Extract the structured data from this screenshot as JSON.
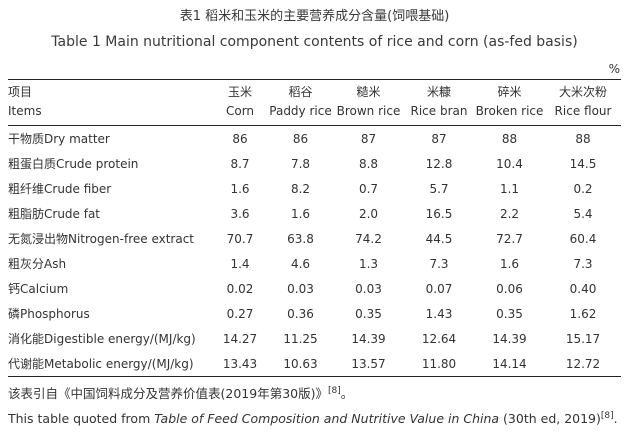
{
  "page": {
    "title_zh": "表1 稻米和玉米的主要营养成分含量(饲喂基础)",
    "title_en": "Table 1 Main nutritional component contents of rice and corn (as-fed basis)",
    "unit_label": "%"
  },
  "table": {
    "header": {
      "items_zh": "项目",
      "items_en": "Items",
      "columns": [
        {
          "zh": "玉米",
          "en": "Corn"
        },
        {
          "zh": "稻谷",
          "en": "Paddy rice"
        },
        {
          "zh": "糙米",
          "en": "Brown rice"
        },
        {
          "zh": "米糠",
          "en": "Rice bran"
        },
        {
          "zh": "碎米",
          "en": "Broken rice"
        },
        {
          "zh": "大米次粉",
          "en": "Rice flour"
        }
      ]
    },
    "rows": [
      {
        "label": "干物质Dry matter",
        "values": [
          "86",
          "86",
          "87",
          "87",
          "88",
          "88"
        ]
      },
      {
        "label": "粗蛋白质Crude protein",
        "values": [
          "8.7",
          "7.8",
          "8.8",
          "12.8",
          "10.4",
          "14.5"
        ]
      },
      {
        "label": "粗纤维Crude fiber",
        "values": [
          "1.6",
          "8.2",
          "0.7",
          "5.7",
          "1.1",
          "0.2"
        ]
      },
      {
        "label": "粗脂肪Crude fat",
        "values": [
          "3.6",
          "1.6",
          "2.0",
          "16.5",
          "2.2",
          "5.4"
        ]
      },
      {
        "label": "无氮浸出物Nitrogen-free extract",
        "values": [
          "70.7",
          "63.8",
          "74.2",
          "44.5",
          "72.7",
          "60.4"
        ]
      },
      {
        "label": "粗灰分Ash",
        "values": [
          "1.4",
          "4.6",
          "1.3",
          "7.3",
          "1.6",
          "7.3"
        ]
      },
      {
        "label": "钙Calcium",
        "values": [
          "0.02",
          "0.03",
          "0.03",
          "0.07",
          "0.06",
          "0.40"
        ]
      },
      {
        "label": "磷Phosphorus",
        "values": [
          "0.27",
          "0.36",
          "0.35",
          "1.43",
          "0.35",
          "1.62"
        ]
      },
      {
        "label": "消化能Digestible energy/(MJ/kg)",
        "values": [
          "14.27",
          "11.25",
          "14.39",
          "12.64",
          "14.39",
          "15.17"
        ]
      },
      {
        "label": "代谢能Metabolic energy/(MJ/kg)",
        "values": [
          "13.43",
          "10.63",
          "13.57",
          "11.80",
          "14.14",
          "12.72"
        ]
      }
    ]
  },
  "footnotes": {
    "zh_text": "该表引自《中国饲料成分及营养价值表(2019年第30版)》",
    "zh_ref": "[8]",
    "zh_end": "。",
    "en_prefix": "This table quoted from ",
    "en_book_title": "Table of Feed Composition and Nutritive Value in China",
    "en_suffix": " (30th ed, 2019)",
    "en_ref": "[8]",
    "en_end": "."
  }
}
